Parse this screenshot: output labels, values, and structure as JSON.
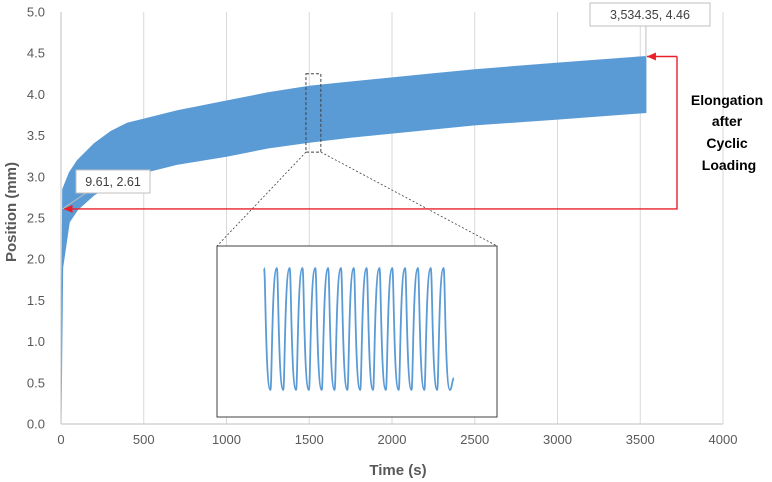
{
  "chart_data": {
    "type": "area",
    "title": "",
    "xlabel": "Time (s)",
    "ylabel": "Position (mm)",
    "xlim": [
      0,
      4000
    ],
    "ylim": [
      0,
      5.0
    ],
    "x_ticks": [
      0,
      500,
      1000,
      1500,
      2000,
      2500,
      3000,
      3500,
      4000
    ],
    "y_ticks": [
      0.0,
      0.5,
      1.0,
      1.5,
      2.0,
      2.5,
      3.0,
      3.5,
      4.0,
      4.5,
      5.0
    ],
    "x_tick_labels": [
      "0",
      "500",
      "1000",
      "1500",
      "2000",
      "2500",
      "3000",
      "3500",
      "4000"
    ],
    "y_tick_labels": [
      "0.0",
      "0.5",
      "1.0",
      "1.5",
      "2.0",
      "2.5",
      "3.0",
      "3.5",
      "4.0",
      "4.5",
      "5.0"
    ],
    "grid": "vertical",
    "legend": "none",
    "series_color": "#5b9bd5",
    "annotation_color": "#e8202a",
    "series": [
      {
        "upper": {
          "x": [
            0,
            10,
            50,
            100,
            200,
            300,
            400,
            500,
            700,
            1000,
            1250,
            1500,
            1750,
            2000,
            2250,
            2500,
            3000,
            3534
          ],
          "y": [
            0.0,
            2.85,
            3.05,
            3.2,
            3.4,
            3.55,
            3.65,
            3.7,
            3.8,
            3.92,
            4.02,
            4.1,
            4.15,
            4.2,
            4.25,
            4.3,
            4.38,
            4.46
          ]
        },
        "lower": {
          "x": [
            0,
            10,
            50,
            100,
            200,
            300,
            400,
            500,
            700,
            1000,
            1250,
            1500,
            1750,
            2000,
            2250,
            2500,
            3000,
            3534
          ],
          "y": [
            0.0,
            1.9,
            2.45,
            2.6,
            2.78,
            2.9,
            3.0,
            3.05,
            3.15,
            3.25,
            3.35,
            3.42,
            3.48,
            3.53,
            3.58,
            3.63,
            3.7,
            3.78
          ]
        }
      }
    ],
    "callouts": [
      {
        "text": "3,534.35, 4.46",
        "x": 3534.35,
        "y": 4.46
      },
      {
        "text": "9.61, 2.61",
        "x": 9.61,
        "y": 2.61
      }
    ],
    "annotation": {
      "lines": [
        "Elongation",
        "after",
        "Cyclic",
        "Loading"
      ]
    },
    "zoom_window": {
      "x_from": 1480,
      "x_to": 1570,
      "y_from": 3.3,
      "y_to": 4.25
    },
    "inset": {
      "cycles": 15,
      "y_high": 1.85,
      "y_low": 0.4
    }
  }
}
